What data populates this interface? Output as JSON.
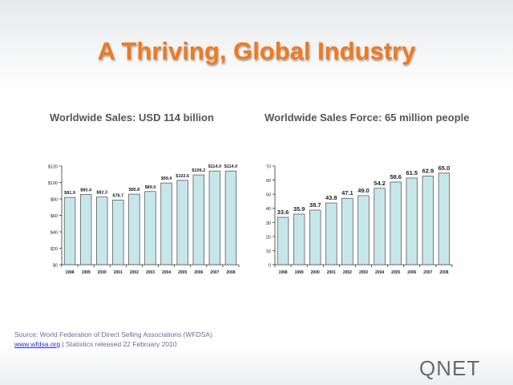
{
  "slide": {
    "title": "A Thriving, Global Industry",
    "source_line": "Source: World Federation of Direct Selling Associations (WFDSA)",
    "link_text": "www.wfdsa.org",
    "stats_note": "|  Statistics released 22 February 2010",
    "logo_text": "QNET"
  },
  "colors": {
    "title": "#f07a1c",
    "bar_fill": "#c6e6ea",
    "bar_stroke": "#4a4a4a",
    "logo_text": "#6b6b6b",
    "logo_accent": "#f07a1c"
  },
  "chart_data": [
    {
      "type": "bar",
      "title": "Worldwide  Sales:  USD  114  billion",
      "categories": [
        "1998",
        "1999",
        "2000",
        "2001",
        "2002",
        "2003",
        "2004",
        "2005",
        "2006",
        "2007",
        "2008"
      ],
      "values": [
        81.9,
        85.4,
        82.3,
        78.7,
        85.8,
        89.0,
        99.4,
        102.6,
        109.2,
        114.0,
        114.0
      ],
      "data_labels": [
        "$81.9",
        "$85.4",
        "$82.3",
        "$78.7",
        "$85.8",
        "$89.0",
        "$99.4",
        "$102.6",
        "$109.2",
        "$114.0",
        "$114.0"
      ],
      "ylim": [
        0,
        120
      ],
      "yticks": [
        0,
        20,
        40,
        60,
        80,
        100,
        120
      ],
      "ytick_labels": [
        "$0",
        "$20",
        "$40",
        "$60",
        "$80",
        "$100",
        "$120"
      ],
      "grid": false,
      "legend": "none"
    },
    {
      "type": "bar",
      "title": "Worldwide  Sales Force:  65  million  people",
      "categories": [
        "1998",
        "1999",
        "2000",
        "2001",
        "2002",
        "2003",
        "2004",
        "2005",
        "2006",
        "2007",
        "2008"
      ],
      "values": [
        33.6,
        35.9,
        38.7,
        43.8,
        47.1,
        49.0,
        54.2,
        58.6,
        61.5,
        62.9,
        65.0
      ],
      "data_labels": [
        "33.6",
        "35.9",
        "38.7",
        "43.8",
        "47.1",
        "49.0",
        "54.2",
        "58.6",
        "61.5",
        "62.9",
        "65.0"
      ],
      "ylim": [
        0,
        70
      ],
      "yticks": [
        0,
        10,
        20,
        30,
        40,
        50,
        60,
        70
      ],
      "ytick_labels": [
        "0",
        "10",
        "20",
        "30",
        "40",
        "50",
        "60",
        "70"
      ],
      "grid": false,
      "legend": "none"
    }
  ]
}
